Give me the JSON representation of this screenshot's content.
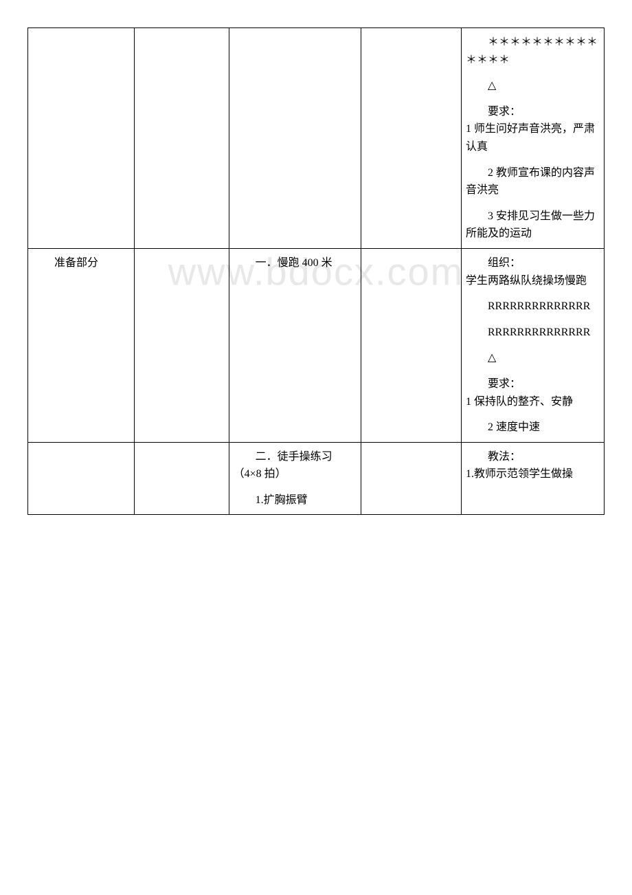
{
  "watermark": "www.bdocx.com",
  "table": {
    "border_color": "#000000",
    "background_color": "#ffffff",
    "text_color": "#000000",
    "font_family": "SimSun",
    "font_size": 16,
    "rows": [
      {
        "col1": "",
        "col2": "",
        "col3": "",
        "col4": "",
        "col5_stars": "　　＊＊＊＊＊＊＊＊＊＊＊＊＊＊",
        "col5_triangle": "△",
        "col5_req_label": "要求：",
        "col5_req1": "1 师生问好声音洪亮，严肃认真",
        "col5_req2": "2 教师宣布课的内容声音洪亮",
        "col5_req3": "3 安排见习生做一些力所能及的运动"
      },
      {
        "col1": "准备部分",
        "col2": "",
        "col3": "一．慢跑 400 米",
        "col4": "",
        "col5_org_label": "组织：",
        "col5_org": "学生两路纵队绕操场慢跑",
        "col5_r1": "RRRRRRRRRRRRRR",
        "col5_r2": "RRRRRRRRRRRRRR",
        "col5_triangle": "△",
        "col5_req_label": "要求：",
        "col5_req1": "1 保持队的整齐、安静",
        "col5_req2": "2 速度中速"
      },
      {
        "col1": "",
        "col2": "",
        "col3_title": "二．徒手操练习（4×8 拍）",
        "col3_item1": "1.扩胸振臂",
        "col4": "",
        "col5_method_label": "教法：",
        "col5_method": "1.教师示范领学生做操"
      }
    ]
  }
}
